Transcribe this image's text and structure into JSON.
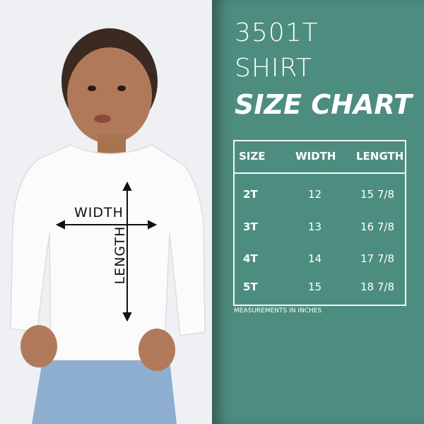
{
  "title": {
    "line1": "3501T",
    "line2": "SHIRT",
    "line3": "SIZE CHART"
  },
  "photo_labels": {
    "width": "WIDTH",
    "length": "LENGTH"
  },
  "table": {
    "headers": [
      "SIZE",
      "WIDTH",
      "LENGTH"
    ],
    "rows": [
      {
        "size": "2T",
        "width": "12",
        "length": "15 7/8"
      },
      {
        "size": "3T",
        "width": "13",
        "length": "16 7/8"
      },
      {
        "size": "4T",
        "width": "14",
        "length": "17 7/8"
      },
      {
        "size": "5T",
        "width": "15",
        "length": "18 7/8"
      }
    ]
  },
  "note": "MEASUREMENTS IN INCHES",
  "colors": {
    "panel": "#4d8d7f",
    "text": "#ffffff"
  }
}
